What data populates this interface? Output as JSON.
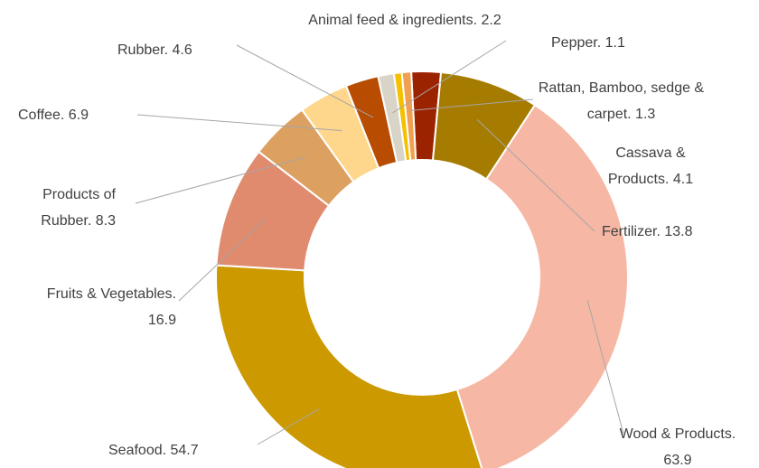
{
  "chart_data": {
    "type": "donut",
    "categories": [
      "Cassava & Products",
      "Fertilizer",
      "Wood & Products",
      "Seafood",
      "Fruits & Vegetables",
      "Products of Rubber",
      "Coffee",
      "Rubber",
      "Animal feed & ingredients",
      "Pepper",
      "Rattan, Bamboo, sedge & carpet"
    ],
    "values": [
      4.1,
      13.8,
      63.9,
      54.7,
      16.9,
      8.3,
      6.9,
      4.6,
      2.2,
      1.1,
      1.3
    ],
    "colors": [
      "#9b2300",
      "#a67c00",
      "#f6b7a4",
      "#cc9900",
      "#e08b6e",
      "#dca060",
      "#fed68c",
      "#b84c00",
      "#d9d4c8",
      "#f5c000",
      "#f0a050"
    ],
    "label_separator": ". ",
    "start_angle": -3
  }
}
